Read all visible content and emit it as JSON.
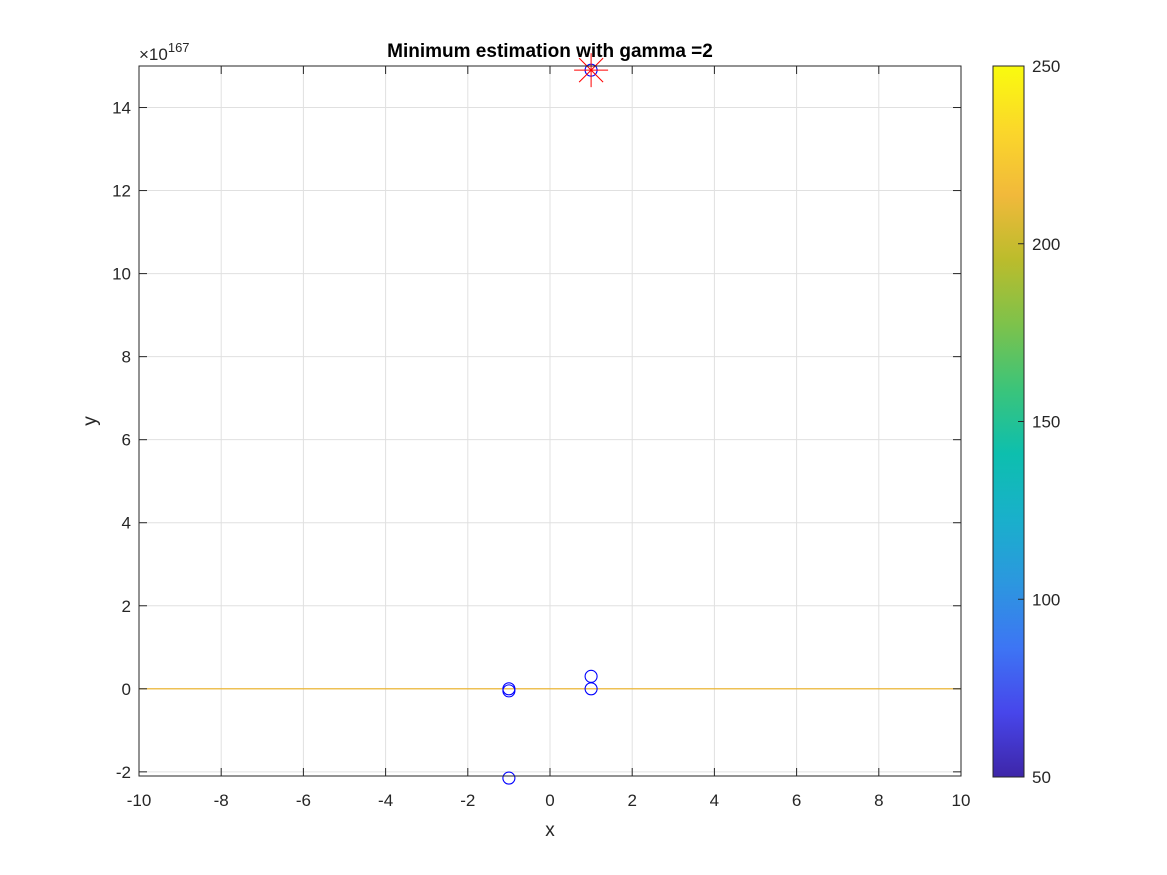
{
  "chart_data": {
    "type": "scatter",
    "title": "Minimum estimation with gamma =2",
    "xlabel": "x",
    "ylabel": "y",
    "exponent_label": "×10",
    "exponent": "167",
    "xlim": [
      -10,
      10
    ],
    "ylim": [
      -2.1,
      15
    ],
    "xticks": [
      -10,
      -8,
      -6,
      -4,
      -2,
      0,
      2,
      4,
      6,
      8,
      10
    ],
    "yticks": [
      -2,
      0,
      2,
      4,
      6,
      8,
      10,
      12,
      14
    ],
    "grid": true,
    "points": [
      {
        "x": -1,
        "y": 0.0
      },
      {
        "x": -1,
        "y": -0.05
      },
      {
        "x": -1,
        "y": -2.15
      },
      {
        "x": 1,
        "y": 0.3
      },
      {
        "x": 1,
        "y": 0.0
      },
      {
        "x": 1,
        "y": 14.9
      }
    ],
    "minimum_marker": {
      "x": 1,
      "y": 14.9
    },
    "baseline": {
      "y": 0,
      "color": "#EDB120"
    },
    "colors": {
      "points": "#0000ff",
      "minimum": "#ff0000",
      "grid": "#e0e0e0",
      "axes": "#262626"
    },
    "colorbar": {
      "min": 50,
      "max": 250,
      "ticks": [
        50,
        100,
        150,
        200,
        250
      ],
      "colormap": "parula",
      "stops": [
        "#3e26a8",
        "#4746eb",
        "#3d75f4",
        "#2c97df",
        "#19b0cb",
        "#0dbfae",
        "#3bc47a",
        "#7dc24b",
        "#bbbc2c",
        "#f1b93b",
        "#fbd72a",
        "#f9fb0e"
      ]
    }
  }
}
